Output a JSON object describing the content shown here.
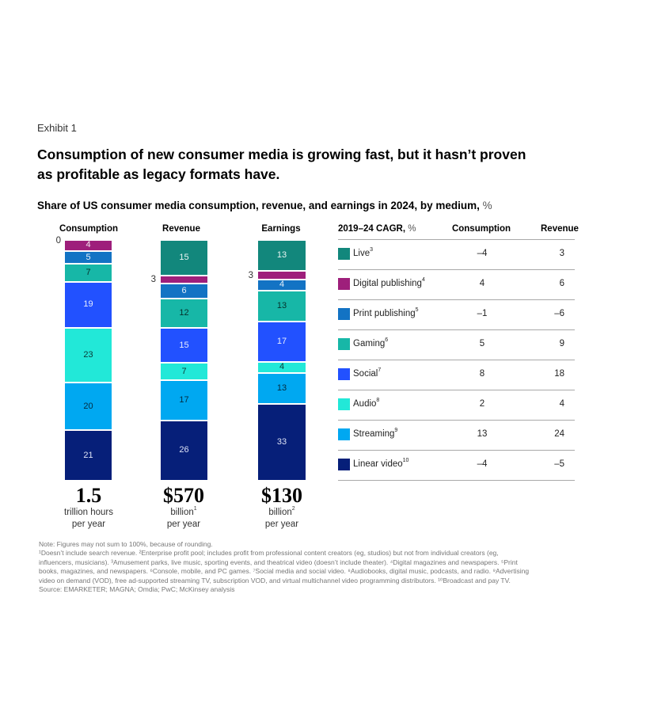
{
  "exhibit_label": "Exhibit 1",
  "title_lines": [
    "Consumption of new consumer media is growing fast, but it hasn’t proven",
    "as profitable as legacy formats have."
  ],
  "chart_data": {
    "type": "bar",
    "stacked": true,
    "title": "Share of US consumer media consumption, revenue, and earnings in 2024, by medium,",
    "unit": "%",
    "categories": [
      "Consumption",
      "Revenue",
      "Earnings"
    ],
    "series": [
      {
        "name": "Live",
        "footnote": "3",
        "color": "#12877C",
        "text_color": "#E8F4F2",
        "values": [
          0,
          15,
          13
        ]
      },
      {
        "name": "Digital publishing",
        "footnote": "4",
        "color": "#9E1F7B",
        "text_color": "#F3E3EE",
        "values": [
          4,
          3,
          3
        ]
      },
      {
        "name": "Print publishing",
        "footnote": "5",
        "color": "#1373C4",
        "text_color": "#E6F0FA",
        "values": [
          5,
          6,
          4
        ]
      },
      {
        "name": "Gaming",
        "footnote": "6",
        "color": "#17B7A7",
        "text_color": "#06312C",
        "values": [
          7,
          12,
          13
        ]
      },
      {
        "name": "Social",
        "footnote": "7",
        "color": "#2251FF",
        "text_color": "#E6ECFF",
        "values": [
          19,
          15,
          17
        ]
      },
      {
        "name": "Audio",
        "footnote": "8",
        "color": "#22E8D8",
        "text_color": "#0A3A36",
        "values": [
          23,
          7,
          4
        ]
      },
      {
        "name": "Streaming",
        "footnote": "9",
        "color": "#00A8F1",
        "text_color": "#042C40",
        "values": [
          20,
          17,
          13
        ]
      },
      {
        "name": "Linear video",
        "footnote": "10",
        "color": "#061F79",
        "text_color": "#DCE2F5",
        "values": [
          21,
          26,
          33
        ]
      }
    ],
    "totals": [
      {
        "value": "1.5",
        "line1": "trillion hours",
        "line1_sup": "",
        "line2": "per year"
      },
      {
        "value": "$570",
        "line1": "billion",
        "line1_sup": "1",
        "line2": "per year"
      },
      {
        "value": "$130",
        "line1": "billion",
        "line1_sup": "2",
        "line2": "per year"
      }
    ]
  },
  "cagr_table": {
    "header": "2019–24 CAGR,",
    "unit": "%",
    "columns": [
      "Consumption",
      "Revenue"
    ],
    "rows": [
      {
        "consumption": "–4",
        "revenue": "3"
      },
      {
        "consumption": "4",
        "revenue": "6"
      },
      {
        "consumption": "–1",
        "revenue": "–6"
      },
      {
        "consumption": "5",
        "revenue": "9"
      },
      {
        "consumption": "8",
        "revenue": "18"
      },
      {
        "consumption": "2",
        "revenue": "4"
      },
      {
        "consumption": "13",
        "revenue": "24"
      },
      {
        "consumption": "–4",
        "revenue": "–5"
      }
    ]
  },
  "footnotes": {
    "lines": [
      "Note: Figures may not sum to 100%, because of rounding.",
      "¹Doesn’t include search revenue. ²Enterprise profit pool; includes profit from professional content creators (eg, studios) but not from individual creators (eg,",
      "influencers, musicians). ³Amusement parks, live music, sporting events, and theatrical video (doesn’t include theater). ⁴Digital magazines and newspapers. ⁵Print",
      "books, magazines, and newspapers. ⁶Console, mobile, and PC games. ⁷Social media and social video. ⁸Audiobooks, digital music, podcasts, and radio. ⁹Advertising",
      "video on demand (VOD), free ad-supported streaming TV, subscription VOD, and virtual multichannel video programming distributors. ¹⁰Broadcast and pay TV.",
      "Source: EMARKETER; MAGNA; Omdia; PwC; McKinsey analysis"
    ]
  }
}
